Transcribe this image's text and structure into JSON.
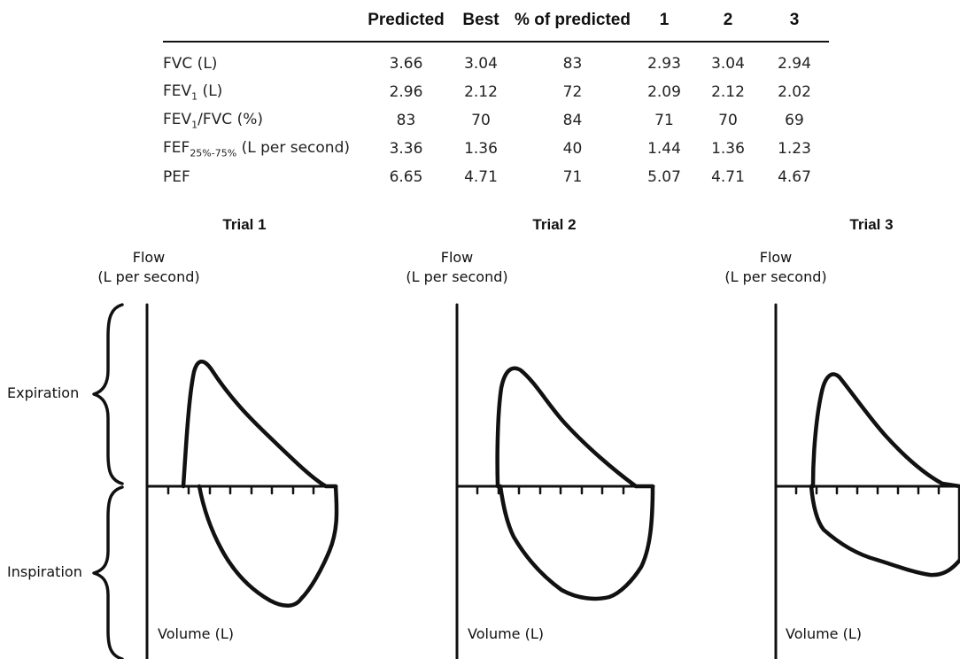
{
  "table": {
    "headers": [
      "",
      "Predicted",
      "Best",
      "% of predicted",
      "1",
      "2",
      "3"
    ],
    "rows": [
      {
        "param": "FVC (L)",
        "values": [
          "3.66",
          "3.04",
          "83",
          "2.93",
          "3.04",
          "2.94"
        ]
      },
      {
        "param_main": "FEV",
        "param_sub": "1",
        "param_rest": " (L)",
        "values": [
          "2.96",
          "2.12",
          "72",
          "2.09",
          "2.12",
          "2.02"
        ]
      },
      {
        "param_main": "FEV",
        "param_sub": "1",
        "param_rest": "/FVC (%)",
        "values": [
          "83",
          "70",
          "84",
          "71",
          "70",
          "69"
        ]
      },
      {
        "param_main": "FEF",
        "param_sub": "25%-75%",
        "param_rest": " (L per second)",
        "values": [
          "3.36",
          "1.36",
          "40",
          "1.44",
          "1.36",
          "1.23"
        ]
      },
      {
        "param": "PEF",
        "values": [
          "6.65",
          "4.71",
          "71",
          "5.07",
          "4.71",
          "4.67"
        ]
      }
    ]
  },
  "trials": [
    {
      "title": "Trial 1",
      "flow_label_1": "Flow",
      "flow_label_2": "(L per second)",
      "volume_label": "Volume (L)"
    },
    {
      "title": "Trial 2",
      "flow_label_1": "Flow",
      "flow_label_2": "(L per second)",
      "volume_label": "Volume (L)"
    },
    {
      "title": "Trial 3",
      "flow_label_1": "Flow",
      "flow_label_2": "(L per second)",
      "volume_label": "Volume (L)"
    }
  ],
  "side_labels": {
    "expiration": "Expiration",
    "inspiration": "Inspiration"
  }
}
